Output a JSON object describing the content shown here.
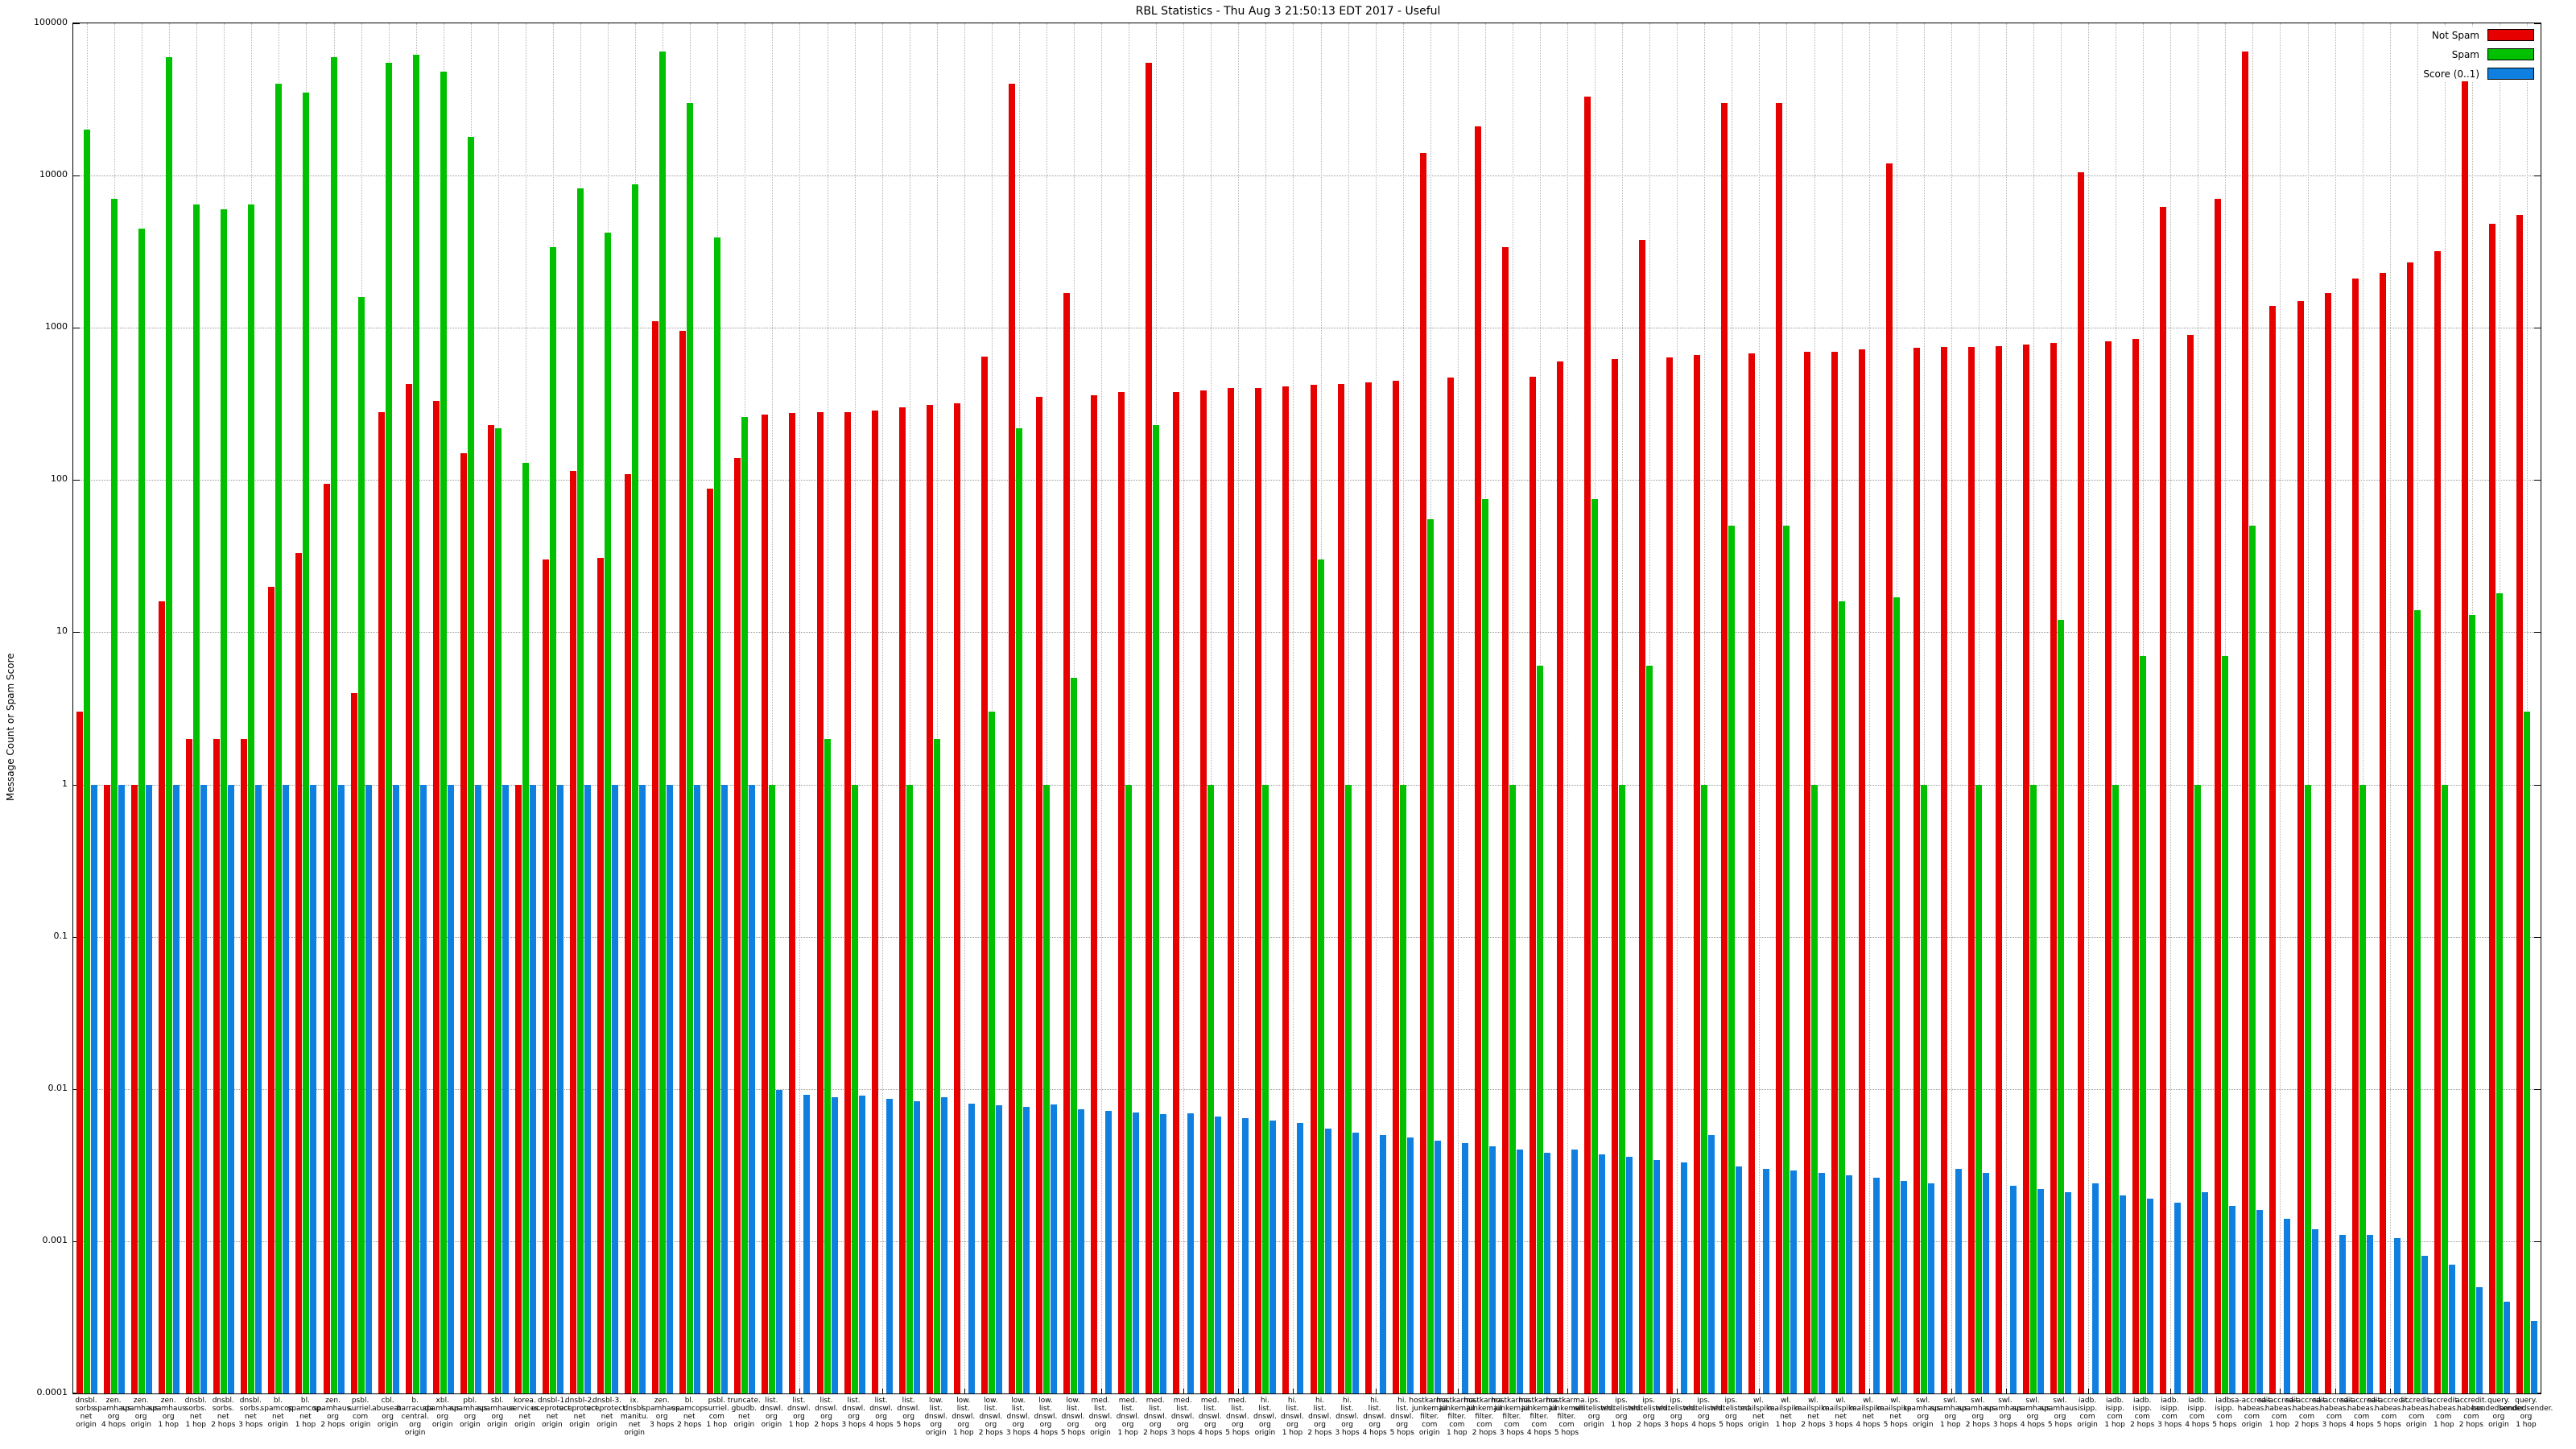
{
  "chart_data": {
    "type": "bar",
    "title": "RBL Statistics - Thu Aug  3 21:50:13 EDT 2017 - Useful",
    "ylabel": "Message Count or Spam Score",
    "xlabel": "",
    "y_scale": "log",
    "ylim": [
      0.0001,
      100000
    ],
    "grid": true,
    "legend_position": "top-right",
    "y_ticks": [
      {
        "label": "100000",
        "value": 100000
      },
      {
        "label": "10000",
        "value": 10000
      },
      {
        "label": "1000",
        "value": 1000
      },
      {
        "label": "100",
        "value": 100
      },
      {
        "label": "10",
        "value": 10
      },
      {
        "label": "1",
        "value": 1
      },
      {
        "label": "0.1",
        "value": 0.1
      },
      {
        "label": "0.01",
        "value": 0.01
      },
      {
        "label": "0.001",
        "value": 0.001
      },
      {
        "label": "0.0001",
        "value": 0.0001
      }
    ],
    "categories": [
      "dnsbl.\nsorbs.\nnet\norigin",
      "zen.\nspamhaus.\norg\n4 hops",
      "zen.\nspamhaus.\norg\norigin",
      "zen.\nspamhaus.\norg\n1 hop",
      "dnsbl.\nsorbs.\nnet\n1 hop",
      "dnsbl.\nsorbs.\nnet\n2 hops",
      "dnsbl.\nsorbs.\nnet\n3 hops",
      "bl.\nspamcop.\nnet\norigin",
      "bl.\nspamcop.\nnet\n1 hop",
      "zen.\nspamhaus.\norg\n2 hops",
      "psbl.\nsurriel.\ncom\norigin",
      "cbl.\nabuseat.\norg\norigin",
      "b.\nbarracuda\ncentral.\norg\norigin",
      "xbl.\nspamhaus.\norg\norigin",
      "pbl.\nspamhaus.\norg\norigin",
      "sbl.\nspamhaus.\norg\norigin",
      "korea.\nservices.\nnet\norigin",
      "dnsbl-1.\nuceprotect.\nnet\norigin",
      "dnsbl-2.\nuceprotect.\nnet\norigin",
      "dnsbl-3.\nuceprotect.\nnet\norigin",
      "ix.\ndnsbl.\nmanitu.\nnet\norigin",
      "zen.\nspamhaus.\norg\n3 hops",
      "bl.\nspamcop.\nnet\n2 hops",
      "psbl.\nsurriel.\ncom\n1 hop",
      "truncate.\ngbudb.\nnet\norigin",
      "list.\ndnswl.\norg\norigin",
      "list.\ndnswl.\norg\n1 hop",
      "list.\ndnswl.\norg\n2 hops",
      "list.\ndnswl.\norg\n3 hops",
      "list.\ndnswl.\norg\n4 hops",
      "list.\ndnswl.\norg\n5 hops",
      "low.\nlist.\ndnswl.\norg\norigin",
      "low.\nlist.\ndnswl.\norg\n1 hop",
      "low.\nlist.\ndnswl.\norg\n2 hops",
      "low.\nlist.\ndnswl.\norg\n3 hops",
      "low.\nlist.\ndnswl.\norg\n4 hops",
      "low.\nlist.\ndnswl.\norg\n5 hops",
      "med.\nlist.\ndnswl.\norg\norigin",
      "med.\nlist.\ndnswl.\norg\n1 hop",
      "med.\nlist.\ndnswl.\norg\n2 hops",
      "med.\nlist.\ndnswl.\norg\n3 hops",
      "med.\nlist.\ndnswl.\norg\n4 hops",
      "med.\nlist.\ndnswl.\norg\n5 hops",
      "hi.\nlist.\ndnswl.\norg\norigin",
      "hi.\nlist.\ndnswl.\norg\n1 hop",
      "hi.\nlist.\ndnswl.\norg\n2 hops",
      "hi.\nlist.\ndnswl.\norg\n3 hops",
      "hi.\nlist.\ndnswl.\norg\n4 hops",
      "hi.\nlist.\ndnswl.\norg\n5 hops",
      "hostkarma.\njunkemail\nfilter.\ncom\norigin",
      "hostkarma.\njunkemail\nfilter.\ncom\n1 hop",
      "hostkarma.\njunkemail\nfilter.\ncom\n2 hops",
      "hostkarma.\njunkemail\nfilter.\ncom\n3 hops",
      "hostkarma.\njunkemail\nfilter.\ncom\n4 hops",
      "hostkarma.\njunkemail\nfilter.\ncom\n5 hops",
      "ips.\nwhitelisted.\norg\norigin",
      "ips.\nwhitelisted.\norg\n1 hop",
      "ips.\nwhitelisted.\norg\n2 hops",
      "ips.\nwhitelisted.\norg\n3 hops",
      "ips.\nwhitelisted.\norg\n4 hops",
      "ips.\nwhitelisted.\norg\n5 hops",
      "wl.\nmailspike.\nnet\norigin",
      "wl.\nmailspike.\nnet\n1 hop",
      "wl.\nmailspike.\nnet\n2 hops",
      "wl.\nmailspike.\nnet\n3 hops",
      "wl.\nmailspike.\nnet\n4 hops",
      "wl.\nmailspike.\nnet\n5 hops",
      "swl.\nspamhaus.\norg\norigin",
      "swl.\nspamhaus.\norg\n1 hop",
      "swl.\nspamhaus.\norg\n2 hops",
      "swl.\nspamhaus.\norg\n3 hops",
      "swl.\nspamhaus.\norg\n4 hops",
      "swl.\nspamhaus.\norg\n5 hops",
      "iadb.\nisipp.\ncom\norigin",
      "iadb.\nisipp.\ncom\n1 hop",
      "iadb.\nisipp.\ncom\n2 hops",
      "iadb.\nisipp.\ncom\n3 hops",
      "iadb.\nisipp.\ncom\n4 hops",
      "iadb.\nisipp.\ncom\n5 hops",
      "sa-accredit.\nhabeas.\ncom\norigin",
      "sa-accredit.\nhabeas.\ncom\n1 hop",
      "sa-accredit.\nhabeas.\ncom\n2 hops",
      "sa-accredit.\nhabeas.\ncom\n3 hops",
      "sa-accredit.\nhabeas.\ncom\n4 hops",
      "sa-accredit.\nhabeas.\ncom\n5 hops",
      "accredit.\nhabeas.\ncom\norigin",
      "accredit.\nhabeas.\ncom\n1 hop",
      "accredit.\nhabeas.\ncom\n2 hops",
      "query.\nbondedsender.\norg\norigin",
      "query.\nbondedsender.\norg\n1 hop"
    ],
    "series": [
      {
        "name": "Not Spam",
        "color": "#e60000",
        "values": [
          3,
          1,
          1,
          16,
          2,
          2,
          2,
          20,
          33,
          95,
          4,
          280,
          430,
          330,
          150,
          230,
          1,
          30,
          115,
          31,
          110,
          1100,
          950,
          88,
          140,
          270,
          275,
          280,
          280,
          285,
          300,
          310,
          320,
          650,
          40000,
          350,
          1700,
          360,
          380,
          55000,
          380,
          390,
          400,
          400,
          410,
          420,
          430,
          440,
          450,
          14000,
          470,
          21000,
          3400,
          480,
          600,
          33000,
          620,
          3800,
          640,
          660,
          30000,
          680,
          30000,
          700,
          700,
          720,
          12000,
          740,
          750,
          750,
          760,
          780,
          800,
          10500,
          820,
          850,
          6200,
          900,
          7000,
          65000,
          1400,
          1500,
          1700,
          2100,
          2300,
          2700,
          3200,
          60000,
          4800,
          5500
        ]
      },
      {
        "name": "Spam",
        "color": "#00c000",
        "values": [
          20000,
          7000,
          4500,
          60000,
          6500,
          6000,
          6500,
          40000,
          35000,
          60000,
          1600,
          55000,
          62000,
          48000,
          18000,
          220,
          130,
          3400,
          8200,
          4200,
          8800,
          65000,
          30000,
          3900,
          260,
          1,
          0,
          2,
          1,
          0,
          1,
          2,
          0,
          3,
          220,
          1,
          5,
          0,
          1,
          230,
          0,
          1,
          0,
          1,
          0,
          30,
          1,
          0,
          1,
          55,
          0,
          75,
          1,
          6,
          0,
          75,
          1,
          6,
          0,
          1,
          50,
          0,
          50,
          1,
          16,
          0,
          17,
          1,
          0,
          1,
          0,
          1,
          12,
          0,
          1,
          7,
          0,
          1,
          7,
          50,
          0,
          1,
          0,
          1,
          0,
          14,
          1,
          13,
          18,
          3
        ]
      },
      {
        "name": "Score (0..1)",
        "color": "#1080e0",
        "values": [
          1,
          1,
          1,
          1,
          1,
          1,
          1,
          1,
          1,
          1,
          1,
          1,
          1,
          1,
          1,
          1,
          1,
          1,
          1,
          1,
          1,
          1,
          1,
          1,
          1,
          0.0098,
          0.0092,
          0.0088,
          0.0091,
          0.0086,
          0.0083,
          0.0088,
          0.008,
          0.0078,
          0.0076,
          0.0079,
          0.0074,
          0.0072,
          0.007,
          0.0068,
          0.0069,
          0.0066,
          0.0064,
          0.0062,
          0.006,
          0.0055,
          0.0052,
          0.005,
          0.0048,
          0.0046,
          0.0044,
          0.0042,
          0.004,
          0.0038,
          0.004,
          0.0037,
          0.0036,
          0.0034,
          0.0033,
          0.005,
          0.0031,
          0.003,
          0.0029,
          0.0028,
          0.0027,
          0.0026,
          0.0025,
          0.0024,
          0.003,
          0.0028,
          0.0023,
          0.0022,
          0.0021,
          0.0024,
          0.002,
          0.0019,
          0.0018,
          0.0021,
          0.0017,
          0.0016,
          0.0014,
          0.0012,
          0.0011,
          0.0011,
          0.00105,
          0.0008,
          0.0007,
          0.0005,
          0.0004,
          0.0003
        ]
      }
    ]
  }
}
